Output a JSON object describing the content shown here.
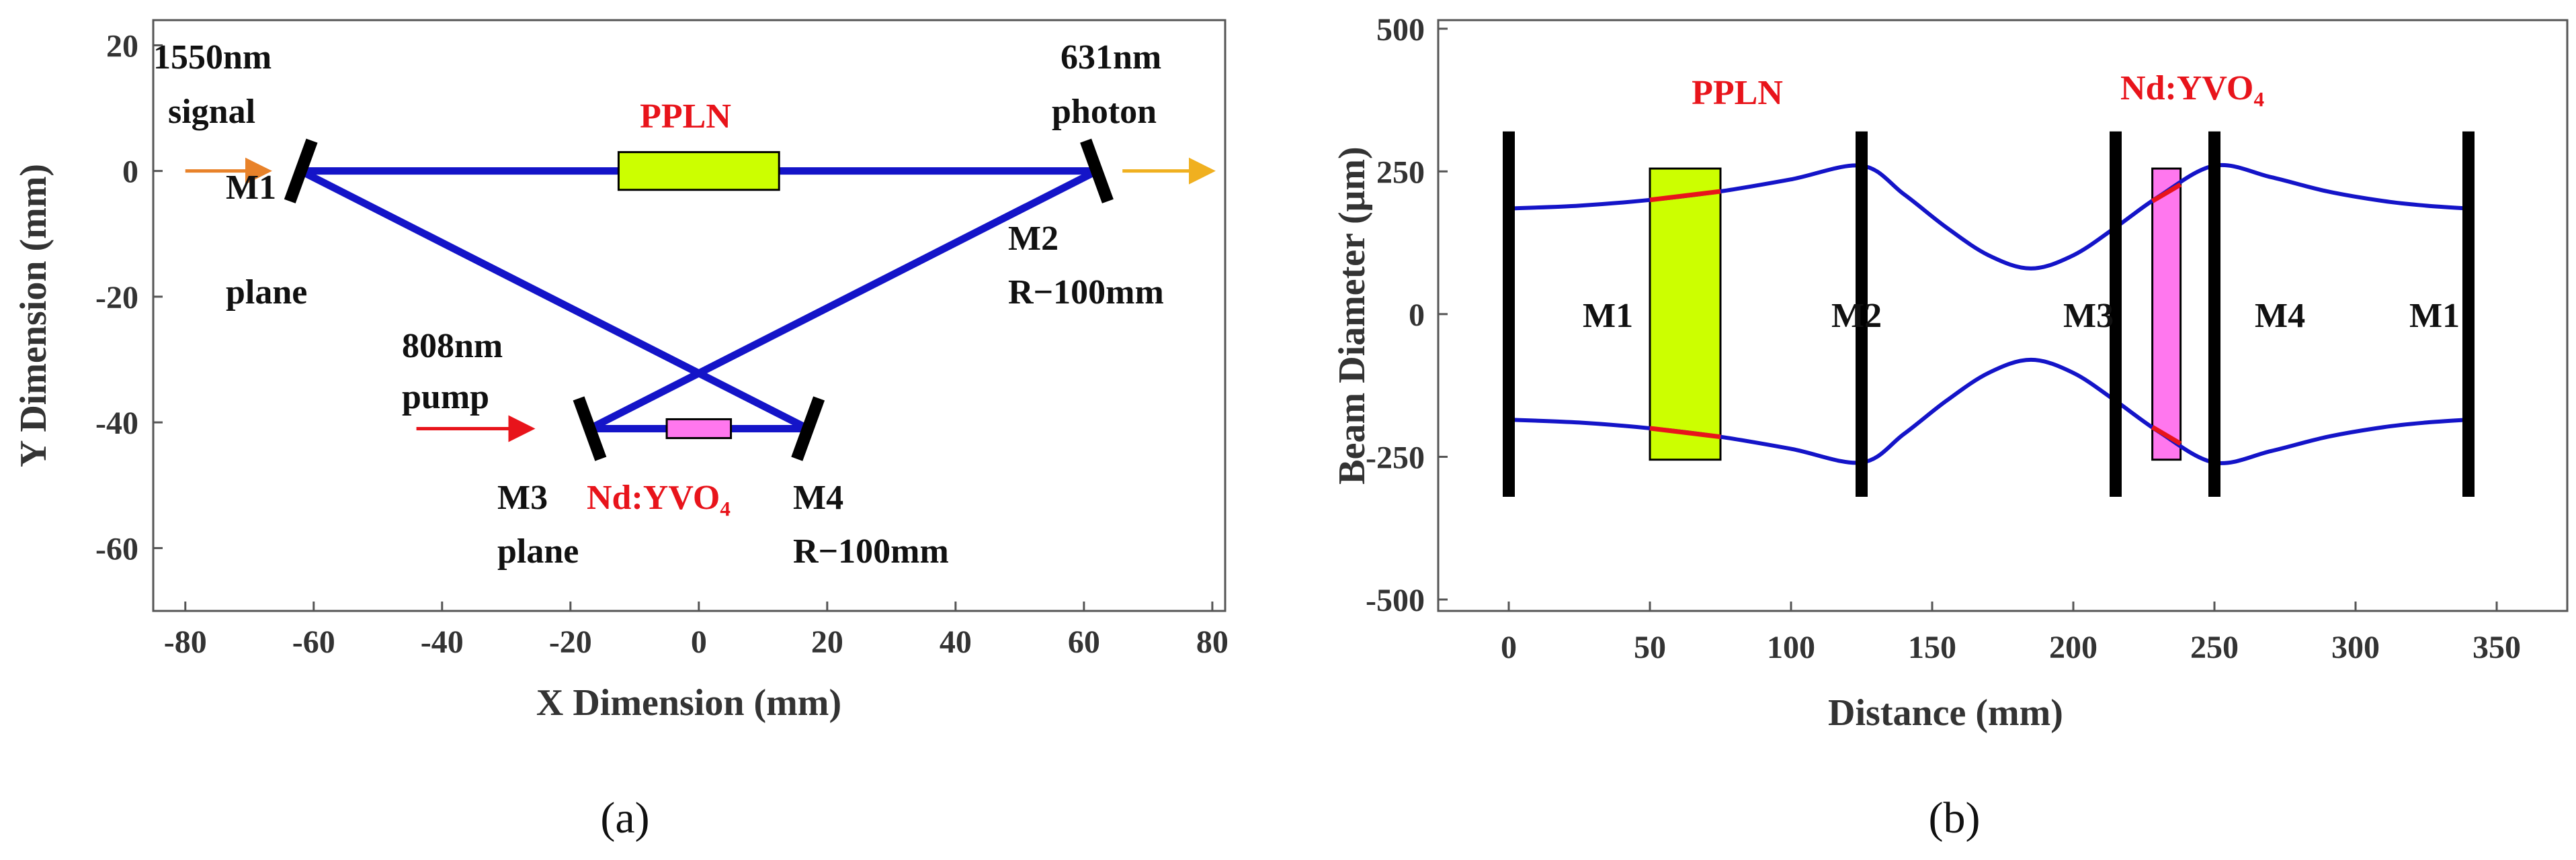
{
  "colors": {
    "beam": "#1414c8",
    "mirror": "#000000",
    "pump_arrow": "#e8141b",
    "signal_arrow": "#e8822a",
    "output_arrow": "#f0b020",
    "ppln_fill": "#ccff00",
    "ndyvo4_fill": "#ff77ee",
    "highlight": "#e8141b",
    "label_red": "#e8141b"
  },
  "chart_data": [
    {
      "panel": "a",
      "type": "scatter",
      "title": "",
      "xlabel": "X Dimension (mm)",
      "ylabel": "Y Dimension (mm)",
      "xlim": [
        -85,
        82
      ],
      "ylim": [
        -70,
        24
      ],
      "xticks": [
        -80,
        -60,
        -40,
        -20,
        0,
        20,
        40,
        60,
        80
      ],
      "yticks": [
        20,
        0,
        -20,
        -40,
        -60
      ],
      "grid": false,
      "beam_path": [
        [
          -62,
          0
        ],
        [
          62,
          0
        ],
        [
          -17,
          -41
        ],
        [
          17,
          -41
        ],
        [
          -62,
          0
        ]
      ],
      "mirrors": [
        {
          "name": "M1",
          "center": [
            -62,
            0
          ],
          "label": "M1",
          "sublabel": "plane"
        },
        {
          "name": "M2",
          "center": [
            62,
            0
          ],
          "label": "M2",
          "sublabel": "R−100mm"
        },
        {
          "name": "M3",
          "center": [
            -17,
            -41
          ],
          "label": "M3",
          "sublabel": "plane"
        },
        {
          "name": "M4",
          "center": [
            17,
            -41
          ],
          "label": "M4",
          "sublabel": "R−100mm"
        }
      ],
      "crystals": [
        {
          "name": "PPLN",
          "x_range": [
            -12.5,
            12.5
          ],
          "y_range": [
            -3,
            3
          ],
          "label": "PPLN"
        },
        {
          "name": "Nd:YVO4",
          "x_range": [
            -5,
            5
          ],
          "y_range": [
            -42.5,
            -39.5
          ],
          "label": "Nd:YVO₄"
        }
      ],
      "annotations": [
        {
          "line1": "1550nm",
          "line2": "signal",
          "arrow_from": [
            -80,
            0
          ],
          "arrow_to": [
            -67,
            0
          ]
        },
        {
          "line1": "631nm",
          "line2": "photon",
          "arrow_from": [
            66,
            0
          ],
          "arrow_to": [
            80,
            0
          ]
        },
        {
          "line1": "808nm",
          "line2": "pump",
          "arrow_from": [
            -44,
            -41
          ],
          "arrow_to": [
            -26,
            -41
          ]
        }
      ]
    },
    {
      "panel": "b",
      "type": "line",
      "title": "",
      "xlabel": "Distance (mm)",
      "ylabel": "Beam Diameter (μm)",
      "xlim": [
        -25,
        375
      ],
      "ylim": [
        -520,
        515
      ],
      "xticks": [
        0,
        50,
        100,
        150,
        200,
        250,
        300,
        350
      ],
      "yticks": [
        500,
        250,
        0,
        -250,
        -500
      ],
      "grid": false,
      "series": [
        {
          "name": "upper",
          "x": [
            0,
            25,
            50,
            75,
            100,
            125,
            140,
            155,
            170,
            185,
            200,
            215,
            230,
            250,
            270,
            290,
            310,
            325,
            340
          ],
          "y": [
            185,
            190,
            200,
            215,
            236,
            260,
            210,
            152,
            103,
            80,
            103,
            152,
            205,
            260,
            240,
            215,
            198,
            190,
            185
          ]
        },
        {
          "name": "lower",
          "x": [
            0,
            25,
            50,
            75,
            100,
            125,
            140,
            155,
            170,
            185,
            200,
            215,
            230,
            250,
            270,
            290,
            310,
            325,
            340
          ],
          "y": [
            -185,
            -190,
            -200,
            -215,
            -236,
            -260,
            -210,
            -152,
            -103,
            -80,
            -103,
            -152,
            -205,
            -260,
            -240,
            -215,
            -198,
            -190,
            -185
          ]
        }
      ],
      "mirrors": [
        {
          "name": "M1",
          "x": 0,
          "y_range": [
            -320,
            320
          ],
          "label": "M1"
        },
        {
          "name": "M2",
          "x": 125,
          "y_range": [
            -320,
            320
          ],
          "label": "M2"
        },
        {
          "name": "M3",
          "x": 215,
          "y_range": [
            -320,
            320
          ],
          "label": "M3"
        },
        {
          "name": "M4",
          "x": 250,
          "y_range": [
            -320,
            320
          ],
          "label": "M4"
        },
        {
          "name": "M1-end",
          "x": 340,
          "y_range": [
            -320,
            320
          ],
          "label": "M1"
        }
      ],
      "crystals": [
        {
          "name": "PPLN",
          "x_range": [
            50,
            75
          ],
          "y_range": [
            -255,
            255
          ],
          "label": "PPLN"
        },
        {
          "name": "Nd:YVO4",
          "x_range": [
            228,
            238
          ],
          "y_range": [
            -255,
            255
          ],
          "label": "Nd:YVO₄"
        }
      ]
    }
  ],
  "panel_labels": [
    "(a)",
    "(b)"
  ]
}
